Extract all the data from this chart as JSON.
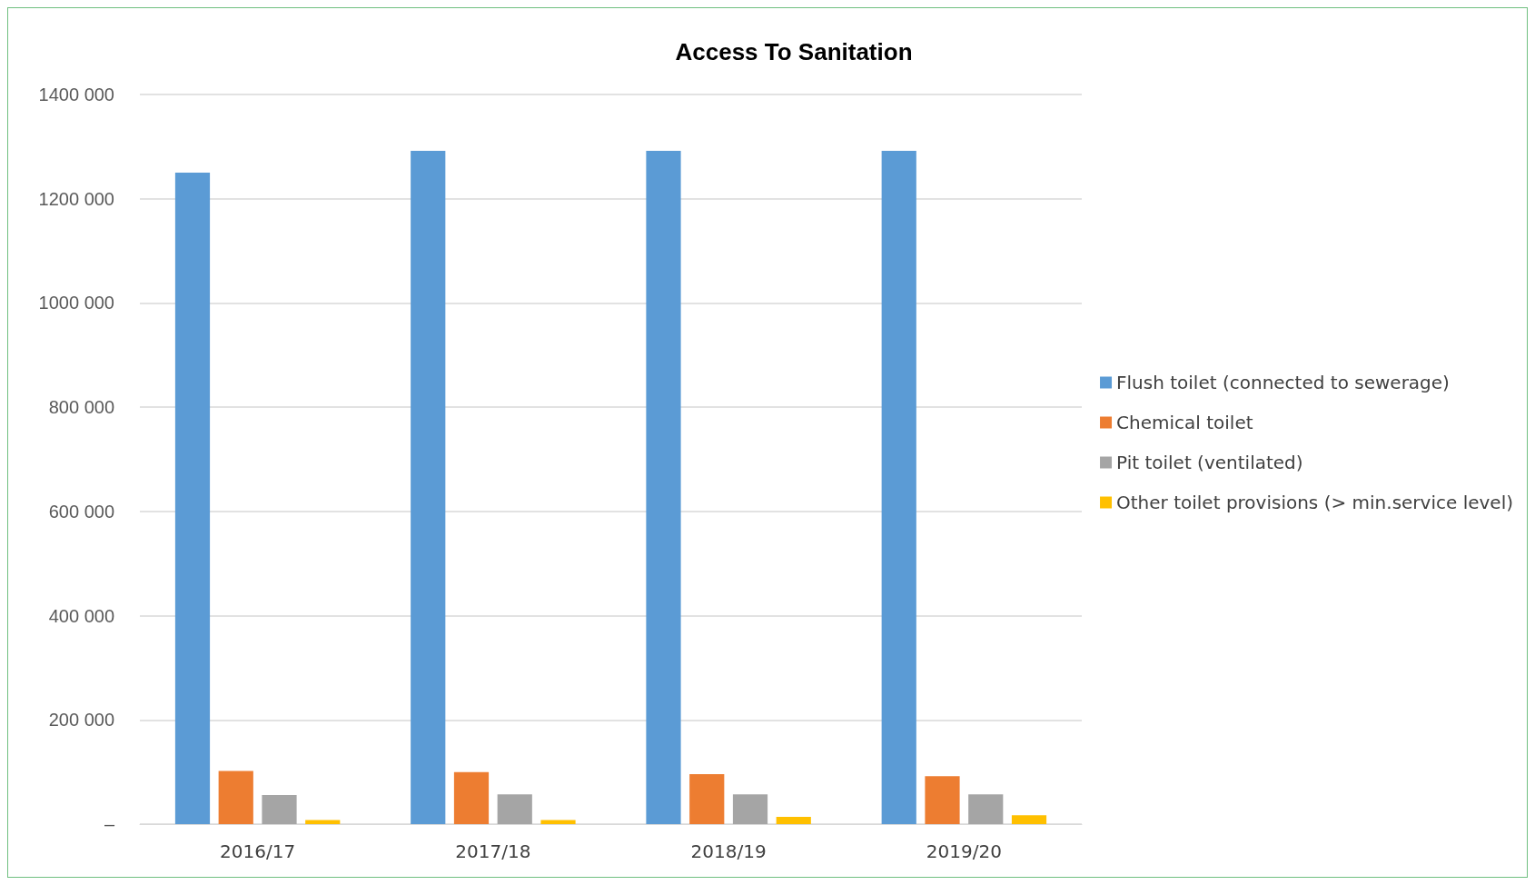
{
  "chart_data": {
    "type": "bar",
    "title": "Access To Sanitation",
    "categories": [
      "2016/17",
      "2017/18",
      "2018/19",
      "2019/20"
    ],
    "series": [
      {
        "name": "Flush toilet (connected to sewerage)",
        "color": "#5b9bd5",
        "values": [
          1250000,
          1292000,
          1292000,
          1292000
        ]
      },
      {
        "name": "Chemical toilet",
        "color": "#ed7d31",
        "values": [
          102000,
          100000,
          96000,
          92000
        ]
      },
      {
        "name": "Pit toilet (ventilated)",
        "color": "#a5a5a5",
        "values": [
          56000,
          57000,
          57000,
          57000
        ]
      },
      {
        "name": "Other toilet provisions (> min.service level)",
        "color": "#ffc000",
        "values": [
          8000,
          8000,
          14000,
          17000
        ]
      }
    ],
    "ylim": [
      0,
      1400000
    ],
    "yticks": [
      {
        "value": 0,
        "label": "–"
      },
      {
        "value": 200000,
        "label": "200 000"
      },
      {
        "value": 400000,
        "label": "400 000"
      },
      {
        "value": 600000,
        "label": "600 000"
      },
      {
        "value": 800000,
        "label": "800 000"
      },
      {
        "value": 1000000,
        "label": "1000 000"
      },
      {
        "value": 1200000,
        "label": "1200 000"
      },
      {
        "value": 1400000,
        "label": "1400 000"
      }
    ],
    "grid": "y",
    "legend": "right"
  }
}
